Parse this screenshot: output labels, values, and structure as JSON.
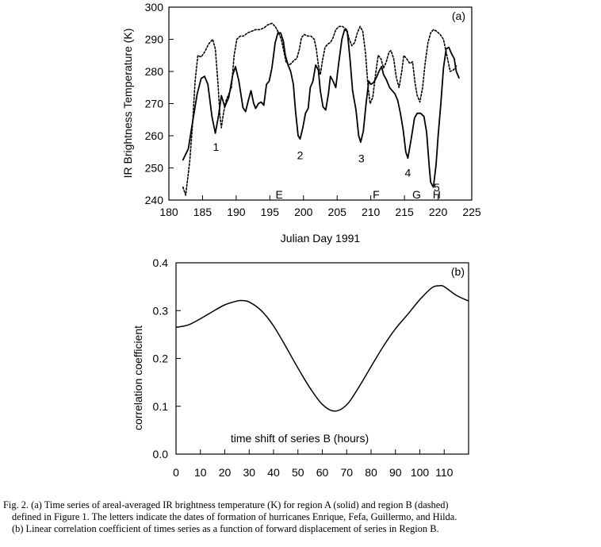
{
  "chart_data": [
    {
      "type": "line",
      "panel": "(a)",
      "title": "",
      "xlabel": "Julian Day 1991",
      "ylabel": "IR Brightness Temperature (K)",
      "xlim": [
        180,
        225
      ],
      "ylim": [
        240,
        300
      ],
      "x_ticks": [
        "180",
        "185",
        "190",
        "195",
        "200",
        "205",
        "210",
        "215",
        "220",
        "225"
      ],
      "y_ticks": [
        "240",
        "250",
        "260",
        "270",
        "280",
        "290",
        "300"
      ],
      "series": [
        {
          "name": "region A (solid)",
          "style": "solid",
          "points": [
            [
              182.1,
              252.5
            ],
            [
              182.9,
              256
            ],
            [
              183.5,
              264
            ],
            [
              184.2,
              273
            ],
            [
              184.8,
              277.8
            ],
            [
              185.3,
              278.5
            ],
            [
              185.8,
              276
            ],
            [
              186.4,
              266
            ],
            [
              186.9,
              260.8
            ],
            [
              187.4,
              266.5
            ],
            [
              187.8,
              272.5
            ],
            [
              188.3,
              269
            ],
            [
              188.9,
              272
            ],
            [
              189.5,
              279
            ],
            [
              189.9,
              281.5
            ],
            [
              190.4,
              277
            ],
            [
              191.0,
              268.8
            ],
            [
              191.4,
              267.5
            ],
            [
              191.8,
              271
            ],
            [
              192.2,
              274
            ],
            [
              192.6,
              270
            ],
            [
              192.9,
              268.5
            ],
            [
              193.3,
              270
            ],
            [
              193.7,
              270.5
            ],
            [
              194.1,
              269.5
            ],
            [
              194.5,
              276
            ],
            [
              194.9,
              277
            ],
            [
              195.3,
              281
            ],
            [
              195.8,
              289
            ],
            [
              196.2,
              292
            ],
            [
              196.6,
              292
            ],
            [
              197.0,
              289.5
            ],
            [
              197.3,
              285
            ],
            [
              197.7,
              282
            ],
            [
              198.1,
              280
            ],
            [
              198.5,
              276
            ],
            [
              198.8,
              268
            ],
            [
              199.2,
              260
            ],
            [
              199.5,
              259
            ],
            [
              199.9,
              262.5
            ],
            [
              200.3,
              267
            ],
            [
              200.7,
              268.5
            ],
            [
              201.0,
              275
            ],
            [
              201.4,
              277
            ],
            [
              201.8,
              282
            ],
            [
              202.2,
              280.5
            ],
            [
              202.5,
              274
            ],
            [
              202.9,
              269
            ],
            [
              203.3,
              268
            ],
            [
              203.7,
              273
            ],
            [
              204.0,
              278.5
            ],
            [
              204.4,
              277
            ],
            [
              204.8,
              275
            ],
            [
              205.2,
              282
            ],
            [
              205.7,
              290
            ],
            [
              206.1,
              293
            ],
            [
              206.5,
              292.5
            ],
            [
              206.9,
              284
            ],
            [
              207.3,
              274
            ],
            [
              207.8,
              268
            ],
            [
              208.2,
              260
            ],
            [
              208.5,
              258
            ],
            [
              208.9,
              261.5
            ],
            [
              209.3,
              270
            ],
            [
              209.7,
              277
            ],
            [
              210.0,
              276
            ],
            [
              210.4,
              276.5
            ],
            [
              210.8,
              278
            ],
            [
              211.2,
              280
            ],
            [
              211.6,
              281.5
            ],
            [
              211.9,
              279
            ],
            [
              212.3,
              277.5
            ],
            [
              212.8,
              275
            ],
            [
              213.2,
              274
            ],
            [
              213.6,
              273
            ],
            [
              214.0,
              271
            ],
            [
              214.4,
              267
            ],
            [
              214.8,
              262
            ],
            [
              215.2,
              255
            ],
            [
              215.5,
              253
            ],
            [
              216.0,
              259
            ],
            [
              216.5,
              265.5
            ],
            [
              216.9,
              267
            ],
            [
              217.4,
              267
            ],
            [
              217.9,
              266
            ],
            [
              218.3,
              261
            ],
            [
              218.7,
              250
            ],
            [
              218.9,
              245.5
            ],
            [
              219.3,
              244
            ],
            [
              219.7,
              251
            ],
            [
              220.0,
              260
            ],
            [
              220.4,
              270
            ],
            [
              220.8,
              281
            ],
            [
              221.2,
              287
            ],
            [
              221.6,
              287.5
            ],
            [
              222.0,
              285.5
            ],
            [
              222.4,
              284
            ],
            [
              222.7,
              280
            ],
            [
              223.1,
              278
            ]
          ]
        },
        {
          "name": "region B (dashed)",
          "style": "dashed",
          "points": [
            [
              182.1,
              244
            ],
            [
              182.5,
              241.5
            ],
            [
              183.1,
              252
            ],
            [
              183.5,
              263
            ],
            [
              183.9,
              277
            ],
            [
              184.3,
              285
            ],
            [
              184.8,
              284.5
            ],
            [
              185.3,
              286
            ],
            [
              185.9,
              288.5
            ],
            [
              186.5,
              290
            ],
            [
              186.9,
              287
            ],
            [
              187.3,
              276
            ],
            [
              187.6,
              266
            ],
            [
              187.8,
              262.5
            ],
            [
              188.1,
              267
            ],
            [
              188.5,
              271
            ],
            [
              188.9,
              273
            ],
            [
              189.3,
              275
            ],
            [
              189.7,
              285
            ],
            [
              190.1,
              290
            ],
            [
              190.6,
              291
            ],
            [
              191.1,
              291
            ],
            [
              191.7,
              292
            ],
            [
              192.3,
              292.5
            ],
            [
              192.9,
              293
            ],
            [
              193.5,
              293
            ],
            [
              194.1,
              293.5
            ],
            [
              194.7,
              294.5
            ],
            [
              195.3,
              295
            ],
            [
              195.8,
              294
            ],
            [
              196.3,
              292
            ],
            [
              196.7,
              290
            ],
            [
              197.1,
              286
            ],
            [
              197.4,
              283
            ],
            [
              197.8,
              282
            ],
            [
              198.2,
              282.5
            ],
            [
              198.6,
              283.5
            ],
            [
              199.0,
              284
            ],
            [
              199.4,
              287
            ],
            [
              199.7,
              290.5
            ],
            [
              200.1,
              291.5
            ],
            [
              200.6,
              291
            ],
            [
              201.1,
              291
            ],
            [
              201.6,
              290
            ],
            [
              201.9,
              287
            ],
            [
              202.2,
              282
            ],
            [
              202.5,
              279
            ],
            [
              202.8,
              283
            ],
            [
              203.2,
              287.5
            ],
            [
              203.6,
              288.5
            ],
            [
              204.0,
              289
            ],
            [
              204.4,
              290.5
            ],
            [
              204.8,
              293
            ],
            [
              205.3,
              294
            ],
            [
              205.8,
              294
            ],
            [
              206.4,
              293
            ],
            [
              206.8,
              290
            ],
            [
              207.2,
              288
            ],
            [
              207.6,
              289
            ],
            [
              208.0,
              292
            ],
            [
              208.4,
              294
            ],
            [
              208.8,
              292.5
            ],
            [
              209.2,
              286
            ],
            [
              209.6,
              275
            ],
            [
              209.9,
              270
            ],
            [
              210.3,
              272
            ],
            [
              210.7,
              279
            ],
            [
              211.1,
              285
            ],
            [
              211.5,
              284
            ],
            [
              211.9,
              281
            ],
            [
              212.3,
              283
            ],
            [
              212.7,
              286
            ],
            [
              213.0,
              286.5
            ],
            [
              213.4,
              284
            ],
            [
              213.8,
              278
            ],
            [
              214.2,
              275
            ],
            [
              214.6,
              280
            ],
            [
              214.9,
              285
            ],
            [
              215.3,
              284
            ],
            [
              215.8,
              282.5
            ],
            [
              216.2,
              283
            ],
            [
              216.6,
              276
            ],
            [
              216.9,
              272.5
            ],
            [
              217.3,
              270.5
            ],
            [
              217.7,
              275
            ],
            [
              218.1,
              283
            ],
            [
              218.5,
              289
            ],
            [
              218.9,
              292
            ],
            [
              219.3,
              293
            ],
            [
              219.8,
              292.5
            ],
            [
              220.3,
              291.5
            ],
            [
              220.8,
              290
            ],
            [
              221.3,
              285
            ],
            [
              221.8,
              280
            ],
            [
              222.3,
              280.5
            ],
            [
              222.8,
              282
            ]
          ]
        }
      ],
      "event_markers": [
        {
          "label": "1",
          "x": 187.0,
          "y": 256.5
        },
        {
          "label": "2",
          "x": 199.5,
          "y": 254.0
        },
        {
          "label": "3",
          "x": 208.6,
          "y": 253.0
        },
        {
          "label": "4",
          "x": 215.5,
          "y": 248.5
        },
        {
          "label": "5",
          "x": 219.8,
          "y": 244.0
        }
      ],
      "hurricane_labels": [
        {
          "label": "E",
          "x": 196.4
        },
        {
          "label": "F",
          "x": 210.8
        },
        {
          "label": "G",
          "x": 216.8
        },
        {
          "label": "H",
          "x": 219.8
        }
      ]
    },
    {
      "type": "line",
      "panel": "(b)",
      "title": "",
      "xlabel": "time shift of series B (hours)",
      "ylabel": "correlation coefficient",
      "xlim": [
        0,
        120
      ],
      "ylim": [
        0,
        0.4
      ],
      "x_ticks": [
        "0",
        "10",
        "20",
        "30",
        "40",
        "50",
        "60",
        "70",
        "80",
        "90",
        "100",
        "110"
      ],
      "y_ticks": [
        "0.0",
        "0.1",
        "0.2",
        "0.3",
        "0.4"
      ],
      "series": [
        {
          "name": "correlation",
          "style": "solid",
          "x": [
            0,
            5,
            10,
            15,
            20,
            25,
            27,
            30,
            35,
            40,
            45,
            50,
            55,
            60,
            65,
            70,
            75,
            80,
            85,
            90,
            95,
            100,
            105,
            108,
            110,
            115,
            120
          ],
          "values": [
            0.265,
            0.27,
            0.283,
            0.298,
            0.312,
            0.32,
            0.321,
            0.318,
            0.3,
            0.268,
            0.225,
            0.18,
            0.138,
            0.104,
            0.09,
            0.103,
            0.14,
            0.183,
            0.225,
            0.262,
            0.292,
            0.323,
            0.348,
            0.352,
            0.35,
            0.332,
            0.32
          ]
        }
      ]
    }
  ],
  "caption": {
    "line1": "Fig. 2. (a) Time series of areal-averaged IR brightness temperature (K) for region A (solid) and region B (dashed)",
    "line2": "defined in Figure 1. The letters indicate the dates of formation of hurricanes Enrique, Fefa, Guillermo, and Hilda.",
    "line3": "(b) Linear correlation coefficient of times series as a function of forward displacement of series in Region B."
  }
}
